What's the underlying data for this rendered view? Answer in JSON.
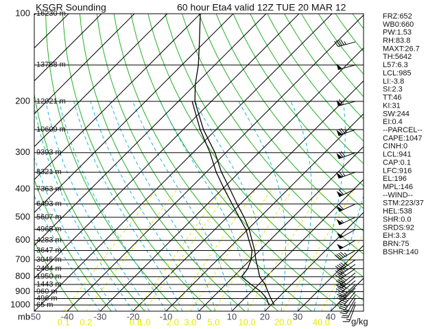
{
  "chart_data": {
    "type": "skew-t",
    "title": "KSGR Sounding",
    "subtitle": "60 hour Eta4 valid 12Z TUE 20 MAR 12",
    "y_label": "mb",
    "y_scale": "log",
    "ylim": [
      1050,
      100
    ],
    "yticks": [
      100,
      200,
      300,
      400,
      500,
      600,
      700,
      800,
      900,
      1000
    ],
    "xlim": [
      -50,
      50
    ],
    "xticks": [
      -50,
      -40,
      -30,
      -20,
      -10,
      0,
      10,
      20,
      30,
      40
    ],
    "heights": {
      "pressure": [
        100,
        150,
        200,
        250,
        300,
        350,
        400,
        450,
        500,
        550,
        600,
        650,
        700,
        750,
        800,
        850,
        900,
        950,
        1000
      ],
      "values": [
        16230,
        13788,
        12021,
        10609,
        9393,
        8321,
        7363,
        6493,
        5607,
        4965,
        4283,
        3647,
        3045,
        2484,
        1950,
        1443,
        960,
        496,
        65
      ],
      "value_labels": [
        "16230 m",
        "13788 m",
        "12021 m",
        "10609 m",
        "9393 m",
        "8321 m",
        "7363 m",
        "6493 m",
        "5607 m",
        "4965 m",
        "4283 m",
        "3647 m",
        "3045 m",
        "2484 m",
        "1950 m",
        "1443 m",
        "960 m",
        "496 m",
        "65 m"
      ]
    },
    "mixing_ratio": {
      "label": "g/kg",
      "color": "#e8e800",
      "ticks": [
        0.1,
        0.2,
        0.8,
        {
          "value": 1,
          "label": "1.0"
        },
        {
          "value": 2,
          "label": "2.0"
        },
        {
          "value": 3,
          "label": "3.0"
        },
        {
          "value": 5,
          "label": "5.0"
        },
        {
          "value": 10,
          "label": "10.0"
        },
        {
          "value": 20,
          "label": "20.0"
        },
        {
          "value": 40,
          "label": "40.0"
        }
      ]
    },
    "series": [
      {
        "color": "#000000",
        "pressure": [
          1000,
          950,
          900,
          850,
          800,
          750,
          700,
          650,
          600,
          550,
          500,
          450,
          400,
          350,
          300,
          250,
          200,
          175,
          150,
          125,
          100
        ],
        "values": [
          21,
          18,
          15,
          12,
          8,
          5,
          1.7,
          -1.5,
          -5.4,
          -9.6,
          -14.8,
          -21,
          -27.7,
          -35.4,
          -43.3,
          -53.8,
          -65,
          -70,
          -75,
          -81.7,
          -90
        ]
      },
      {
        "color": "#000000",
        "pressure": [
          1000,
          950,
          900,
          850,
          800,
          750,
          700,
          650,
          600,
          550,
          500,
          450,
          400,
          350,
          300,
          250,
          200
        ],
        "values": [
          19.4,
          16.7,
          12.9,
          7.7,
          2.5,
          1.9,
          0.2,
          -2.3,
          -6.3,
          -10.6,
          -16.3,
          -22.5,
          -29.4,
          -37,
          -44.8,
          -54.8,
          -65.8
        ]
      }
    ],
    "wind": {
      "pressure": [
        1000,
        975,
        950,
        925,
        900,
        875,
        850,
        825,
        800,
        775,
        750,
        725,
        700,
        650,
        600,
        550,
        500,
        450,
        400,
        350,
        300,
        250,
        200,
        150,
        125
      ],
      "direction": [
        200,
        205,
        210,
        215,
        220,
        225,
        225,
        230,
        230,
        230,
        235,
        235,
        235,
        240,
        240,
        240,
        245,
        245,
        245,
        250,
        250,
        250,
        255,
        255,
        255
      ],
      "speed": [
        15,
        20,
        25,
        30,
        35,
        35,
        40,
        40,
        40,
        40,
        40,
        45,
        45,
        45,
        50,
        50,
        55,
        60,
        60,
        65,
        70,
        75,
        60,
        50,
        45
      ]
    },
    "stats": [
      "FRZ:652",
      "WB0:660",
      "PW:1.53",
      "RH:83.8",
      "MAXT:26.7",
      "TH:5642",
      "L57:6.3",
      "LCL:985",
      "LI:-3.8",
      "SI:2.3",
      "TT:46",
      "KI:31",
      "SW:244",
      "EI:0.4",
      "--PARCEL--",
      "CAPE:1047",
      "CINH:0",
      "LCL:941",
      "CAP:0.1",
      "LFC:916",
      "EL:196",
      "MPL:146",
      "--WIND--",
      "STM:223/37",
      "HEL:538",
      "SHR:0.0",
      "SRDS:92",
      "EH:3.3",
      "BRN:75",
      "BSHR:140"
    ]
  }
}
